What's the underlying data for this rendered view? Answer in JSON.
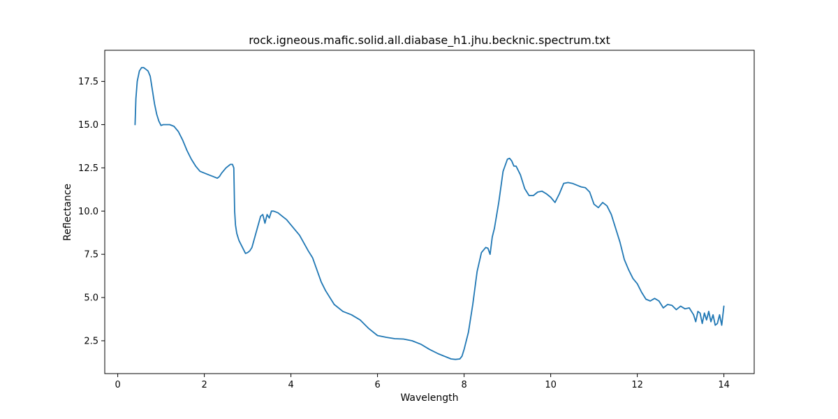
{
  "chart_data": {
    "type": "line",
    "title": "rock.igneous.mafic.solid.all.diabase_h1.jhu.becknic.spectrum.txt",
    "xlabel": "Wavelength",
    "ylabel": "Reflectance",
    "xlim": [
      -0.3,
      14.7
    ],
    "ylim": [
      0.6,
      19.3
    ],
    "xticks": [
      0,
      2,
      4,
      6,
      8,
      10,
      12,
      14
    ],
    "yticks": [
      2.5,
      5.0,
      7.5,
      10.0,
      12.5,
      15.0,
      17.5
    ],
    "xtick_labels": [
      "0",
      "2",
      "4",
      "6",
      "8",
      "10",
      "12",
      "14"
    ],
    "ytick_labels": [
      "2.5",
      "5.0",
      "7.5",
      "10.0",
      "12.5",
      "15.0",
      "17.5"
    ],
    "grid": false,
    "line_color": "#1f77b4",
    "series": [
      {
        "x": [
          0.4,
          0.42,
          0.45,
          0.5,
          0.55,
          0.6,
          0.65,
          0.7,
          0.75,
          0.8,
          0.85,
          0.9,
          0.95,
          1.0,
          1.05,
          1.1,
          1.2,
          1.3,
          1.4,
          1.5,
          1.6,
          1.7,
          1.8,
          1.9,
          2.0,
          2.1,
          2.2,
          2.3,
          2.35,
          2.4,
          2.5,
          2.6,
          2.65,
          2.68,
          2.7,
          2.72,
          2.75,
          2.8,
          2.9,
          2.95,
          3.0,
          3.05,
          3.1,
          3.2,
          3.3,
          3.35,
          3.4,
          3.45,
          3.5,
          3.55,
          3.6,
          3.7,
          3.8,
          3.9,
          4.0,
          4.2,
          4.4,
          4.5,
          4.6,
          4.7,
          4.8,
          5.0,
          5.2,
          5.4,
          5.6,
          5.8,
          6.0,
          6.2,
          6.4,
          6.6,
          6.8,
          7.0,
          7.2,
          7.4,
          7.6,
          7.7,
          7.8,
          7.9,
          7.95,
          8.0,
          8.1,
          8.2,
          8.3,
          8.4,
          8.5,
          8.55,
          8.6,
          8.65,
          8.7,
          8.8,
          8.9,
          9.0,
          9.05,
          9.1,
          9.15,
          9.2,
          9.3,
          9.4,
          9.5,
          9.6,
          9.7,
          9.8,
          9.9,
          10.0,
          10.1,
          10.2,
          10.3,
          10.4,
          10.5,
          10.6,
          10.7,
          10.8,
          10.9,
          11.0,
          11.1,
          11.2,
          11.3,
          11.4,
          11.5,
          11.6,
          11.7,
          11.8,
          11.9,
          12.0,
          12.1,
          12.2,
          12.3,
          12.4,
          12.5,
          12.6,
          12.7,
          12.8,
          12.9,
          13.0,
          13.1,
          13.2,
          13.3,
          13.35,
          13.4,
          13.45,
          13.5,
          13.55,
          13.6,
          13.65,
          13.7,
          13.75,
          13.8,
          13.85,
          13.9,
          13.95,
          14.0
        ],
        "y": [
          15.0,
          16.5,
          17.5,
          18.1,
          18.3,
          18.3,
          18.2,
          18.1,
          17.8,
          17.0,
          16.2,
          15.6,
          15.2,
          14.95,
          15.0,
          15.0,
          15.0,
          14.9,
          14.6,
          14.1,
          13.5,
          13.0,
          12.6,
          12.3,
          12.2,
          12.1,
          12.0,
          11.9,
          12.0,
          12.2,
          12.5,
          12.7,
          12.7,
          12.5,
          10.0,
          9.2,
          8.7,
          8.3,
          7.8,
          7.55,
          7.6,
          7.7,
          7.9,
          8.8,
          9.7,
          9.8,
          9.3,
          9.8,
          9.6,
          10.0,
          10.0,
          9.9,
          9.7,
          9.5,
          9.2,
          8.6,
          7.7,
          7.3,
          6.6,
          5.9,
          5.4,
          4.6,
          4.2,
          4.0,
          3.7,
          3.2,
          2.8,
          2.7,
          2.62,
          2.6,
          2.5,
          2.3,
          2.0,
          1.75,
          1.55,
          1.45,
          1.42,
          1.45,
          1.6,
          2.0,
          3.0,
          4.6,
          6.5,
          7.6,
          7.9,
          7.85,
          7.5,
          8.5,
          9.0,
          10.5,
          12.3,
          13.0,
          13.05,
          12.9,
          12.6,
          12.6,
          12.1,
          11.3,
          10.9,
          10.9,
          11.1,
          11.15,
          11.0,
          10.8,
          10.5,
          11.0,
          11.6,
          11.65,
          11.6,
          11.5,
          11.4,
          11.35,
          11.1,
          10.4,
          10.2,
          10.5,
          10.3,
          9.8,
          9.0,
          8.2,
          7.2,
          6.6,
          6.1,
          5.8,
          5.3,
          4.9,
          4.8,
          4.95,
          4.8,
          4.4,
          4.6,
          4.55,
          4.3,
          4.5,
          4.35,
          4.4,
          4.0,
          3.6,
          4.2,
          4.1,
          3.5,
          4.1,
          3.7,
          4.2,
          3.6,
          4.0,
          3.4,
          3.5,
          4.0,
          3.4,
          4.5
        ]
      }
    ]
  }
}
